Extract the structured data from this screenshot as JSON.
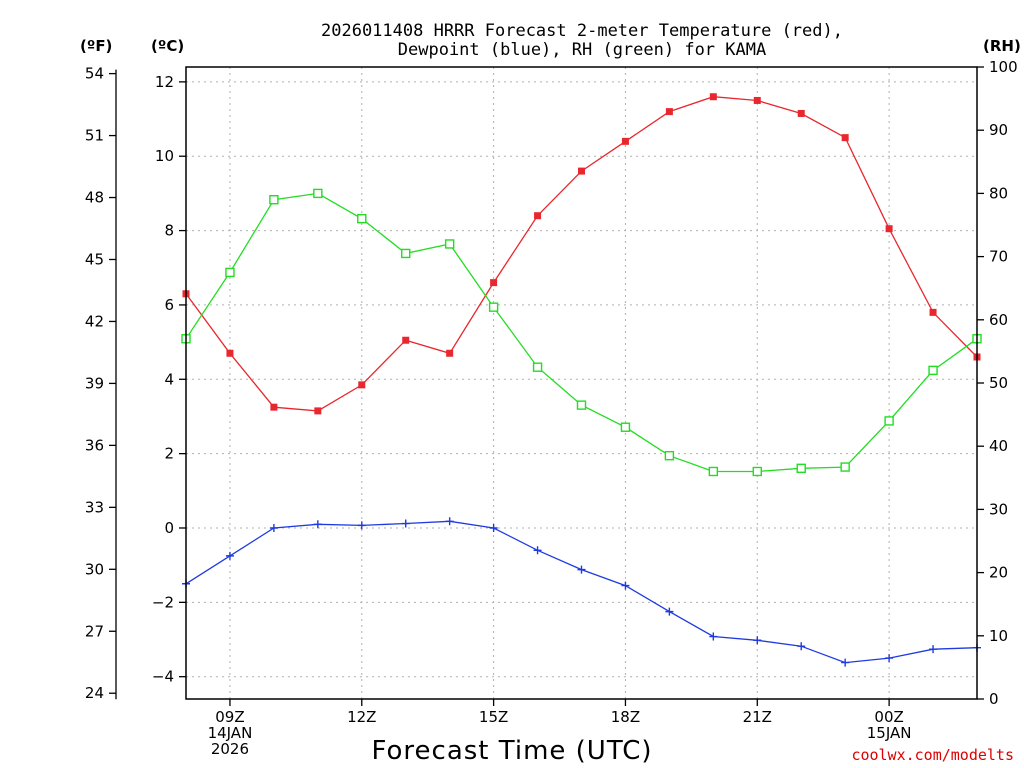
{
  "chart_data": {
    "type": "line",
    "title": "2026011408 HRRR Forecast 2-meter Temperature (red),",
    "subtitle": "Dewpoint (blue), RH (green) for KAMA",
    "xlabel": "Forecast Time (UTC)",
    "credit": "coolwx.com/modelts",
    "units": {
      "fahrenheit": "(ºF)",
      "celsius": "(ºC)",
      "rh": "(RH)"
    },
    "x_hours": [
      8,
      9,
      10,
      11,
      12,
      13,
      14,
      15,
      16,
      17,
      18,
      19,
      20,
      21,
      22,
      23,
      24,
      25,
      26
    ],
    "xlim": [
      8,
      26
    ],
    "x_ticks": [
      {
        "hour": 9,
        "lines": [
          "09Z",
          "14JAN",
          "2026"
        ]
      },
      {
        "hour": 12,
        "lines": [
          "12Z"
        ]
      },
      {
        "hour": 15,
        "lines": [
          "15Z"
        ]
      },
      {
        "hour": 18,
        "lines": [
          "18Z"
        ]
      },
      {
        "hour": 21,
        "lines": [
          "21Z"
        ]
      },
      {
        "hour": 24,
        "lines": [
          "00Z",
          "15JAN"
        ]
      }
    ],
    "y_celsius": {
      "lim": [
        -4.6,
        12.4
      ],
      "ticks": [
        -4,
        -2,
        0,
        2,
        4,
        6,
        8,
        10,
        12
      ]
    },
    "y_fahrenheit": {
      "ticks": [
        24,
        27,
        30,
        33,
        36,
        39,
        42,
        45,
        48,
        51,
        54
      ]
    },
    "y_rh": {
      "lim": [
        0,
        100
      ],
      "ticks": [
        0,
        10,
        20,
        30,
        40,
        50,
        60,
        70,
        80,
        90,
        100
      ]
    },
    "series": [
      {
        "name": "Temperature",
        "axis": "celsius",
        "color": "#e8282e",
        "marker": "filled-square",
        "values": [
          6.3,
          4.7,
          3.25,
          3.15,
          3.85,
          5.05,
          4.7,
          6.6,
          8.4,
          9.6,
          10.4,
          11.2,
          11.6,
          11.5,
          11.15,
          10.5,
          8.05,
          5.8,
          4.6
        ]
      },
      {
        "name": "Dewpoint",
        "axis": "celsius",
        "color": "#1f3be0",
        "marker": "plus",
        "values": [
          -1.5,
          -0.75,
          0.0,
          0.1,
          0.07,
          0.12,
          0.18,
          0.0,
          -0.6,
          -1.12,
          -1.55,
          -2.25,
          -2.92,
          -3.02,
          -3.18,
          -3.62,
          -3.5,
          -3.26,
          -3.22
        ]
      },
      {
        "name": "RH",
        "axis": "rh",
        "color": "#22dd22",
        "marker": "open-square",
        "values": [
          57,
          67.5,
          79,
          80,
          76,
          70.5,
          72,
          62,
          52.5,
          46.5,
          43,
          38.5,
          36,
          36,
          36.5,
          36.7,
          44,
          52,
          57
        ]
      }
    ]
  }
}
